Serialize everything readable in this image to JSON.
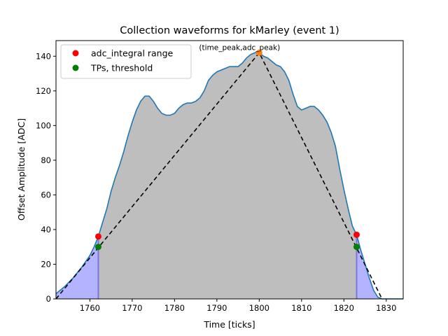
{
  "chart_data": {
    "type": "area",
    "title": "Collection waveforms for kMarley (event 1)",
    "xlabel": "Time [ticks]",
    "ylabel": "Offset Amplitude [ADC]",
    "xlim": [
      1752,
      1834
    ],
    "ylim": [
      0,
      149
    ],
    "xticks": [
      1760,
      1770,
      1780,
      1790,
      1800,
      1810,
      1820,
      1830
    ],
    "yticks": [
      0,
      20,
      40,
      60,
      80,
      100,
      120,
      140
    ],
    "grid": false,
    "legend_position": "top-left",
    "legend": [
      {
        "label": "adc_integral range",
        "color": "#ff0000"
      },
      {
        "label": "TPs, threshold",
        "color": "#008000"
      }
    ],
    "annotation": {
      "text": "(time_peak,adc_peak)",
      "x": 1800,
      "y": 142
    },
    "series": [
      {
        "style": "line",
        "color": "#1f77b4",
        "x": [
          1752,
          1754,
          1756,
          1758,
          1760,
          1761,
          1762,
          1763,
          1764,
          1765,
          1766,
          1767,
          1768,
          1769,
          1770,
          1771,
          1772,
          1773,
          1774,
          1775,
          1776,
          1777,
          1778,
          1779,
          1780,
          1781,
          1782,
          1783,
          1784,
          1785,
          1786,
          1787,
          1788,
          1789,
          1790,
          1791,
          1792,
          1793,
          1794,
          1795,
          1796,
          1797,
          1798,
          1799,
          1800,
          1801,
          1802,
          1803,
          1804,
          1805,
          1806,
          1807,
          1808,
          1809,
          1810,
          1811,
          1812,
          1813,
          1814,
          1815,
          1816,
          1817,
          1818,
          1819,
          1820,
          1821,
          1822,
          1823,
          1824,
          1825,
          1826,
          1827,
          1828,
          1829,
          1830,
          1832,
          1834
        ],
        "y": [
          3,
          7,
          12,
          18,
          25,
          30,
          36,
          44,
          52,
          62,
          70,
          77,
          85,
          94,
          102,
          109,
          114,
          117,
          117,
          114,
          110,
          107,
          106,
          106,
          107,
          110,
          112,
          113,
          113,
          114,
          116,
          120,
          126,
          129,
          131,
          132,
          133,
          134,
          134,
          134,
          136,
          139,
          141,
          142,
          142,
          140,
          139,
          137,
          135,
          134,
          131,
          126,
          118,
          111,
          109,
          110,
          111,
          111,
          109,
          106,
          102,
          96,
          88,
          75,
          63,
          52,
          42,
          37,
          28,
          20,
          12,
          5,
          1,
          0,
          0,
          0,
          0
        ]
      },
      {
        "style": "fill-between-markers",
        "color": "#bebebe",
        "x_range": [
          1762,
          1823
        ]
      },
      {
        "style": "fill-outside-markers",
        "color": "#b3b3ff",
        "x_ranges": [
          [
            1752,
            1762
          ],
          [
            1823,
            1829
          ]
        ]
      },
      {
        "style": "dashed-triangle",
        "color": "#000000",
        "x": [
          1752,
          1800,
          1829
        ],
        "y": [
          0,
          142,
          0
        ]
      },
      {
        "style": "vertical-lines",
        "color": "#7777dd",
        "x": [
          1762,
          1823
        ]
      },
      {
        "style": "markers",
        "name": "adc_integral range",
        "color": "#ff0000",
        "x": [
          1762,
          1823
        ],
        "y": [
          36,
          37
        ]
      },
      {
        "style": "markers",
        "name": "TPs, threshold",
        "color": "#008000",
        "x": [
          1762,
          1823
        ],
        "y": [
          30,
          30
        ]
      },
      {
        "style": "markers",
        "color": "#ff7f0e",
        "x": [
          1800
        ],
        "y": [
          142
        ]
      }
    ]
  }
}
